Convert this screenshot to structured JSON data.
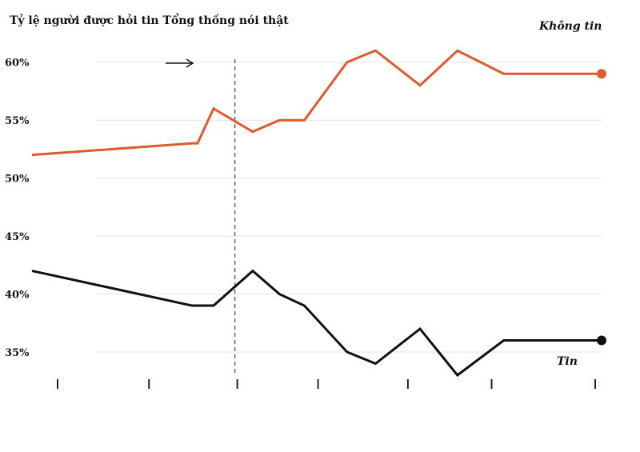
{
  "chart_data": {
    "type": "line",
    "title": "Tỷ lệ người được hỏi tin Tổng thống nói thật",
    "ylim": [
      33,
      61.5
    ],
    "yticks": [
      35,
      40,
      45,
      50,
      55,
      60
    ],
    "ytick_labels": [
      "35%",
      "40%",
      "45%",
      "50%",
      "55%",
      "60%"
    ],
    "grid": true,
    "x": [
      0,
      9,
      9.3,
      10.2,
      12.4,
      13.9,
      15.3,
      17.7,
      19.3,
      21.8,
      23.9,
      26.5,
      28.8,
      32
    ],
    "xticks": [
      1.5,
      7.5,
      13.3,
      18.6,
      24.5,
      30,
      36.8
    ],
    "marker_x": 11.4,
    "series": [
      {
        "name": "Không tin",
        "color": "#e05a2c",
        "values": [
          52,
          53,
          53,
          56,
          54,
          55,
          55,
          60,
          61,
          58,
          61,
          59,
          59,
          59
        ]
      },
      {
        "name": "Tin",
        "color": "#111111",
        "values": [
          42,
          39,
          39,
          39,
          42,
          40,
          39,
          35,
          34,
          37,
          33,
          36,
          36,
          36
        ]
      }
    ]
  }
}
